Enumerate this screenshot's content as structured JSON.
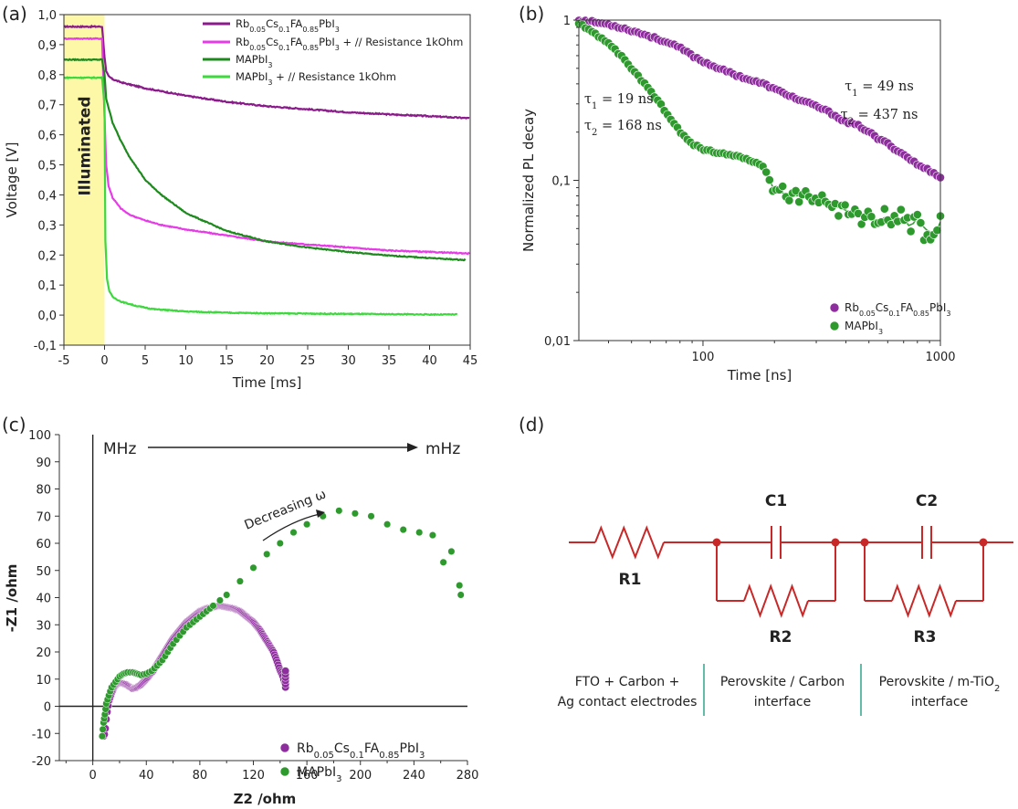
{
  "panel_labels": [
    "(a)",
    "(b)",
    "(c)",
    "(d)"
  ],
  "colors": {
    "rb": "#8B1A8B",
    "rb_res": "#E83BE8",
    "ma": "#1E8A1E",
    "ma_res": "#3CD83C",
    "highlight": "#FDF7A8",
    "circuit": "#C82828",
    "divider": "#2EA58A",
    "dot_purple": "#8E2E9E",
    "dot_green": "#2E9A2E"
  },
  "chart_data": [
    {
      "panel": "(a)",
      "type": "line",
      "xlabel": "Time [ms]",
      "ylabel": "Voltage [V]",
      "xlim": [
        -5,
        45
      ],
      "ylim": [
        -0.1,
        1.0
      ],
      "xticks": [
        "-5",
        "0",
        "5",
        "10",
        "15",
        "20",
        "25",
        "30",
        "35",
        "40",
        "45"
      ],
      "yticks": [
        "-0,1",
        "0,0",
        "0,1",
        "0,2",
        "0,3",
        "0,4",
        "0,5",
        "0,6",
        "0,7",
        "0,8",
        "0,9",
        "1,0"
      ],
      "annotation": "Illuminated",
      "illuminated_range": [
        -5,
        0
      ],
      "legend_position": "top-right",
      "series": [
        {
          "name_parts": [
            [
              "Rb",
              ""
            ],
            [
              "0.05",
              "sub"
            ],
            [
              "Cs",
              ""
            ],
            [
              "0.1",
              "sub"
            ],
            [
              "FA",
              ""
            ],
            [
              "0.85",
              "sub"
            ],
            [
              "PbI",
              ""
            ],
            [
              "3",
              "sub"
            ]
          ],
          "color_key": "rb",
          "x": [
            -5,
            -0.3,
            0,
            0.2,
            0.5,
            1,
            2,
            3,
            5,
            7,
            10,
            15,
            20,
            25,
            30,
            35,
            40,
            45
          ],
          "y": [
            0.96,
            0.96,
            0.86,
            0.81,
            0.795,
            0.785,
            0.775,
            0.768,
            0.755,
            0.745,
            0.73,
            0.71,
            0.695,
            0.685,
            0.675,
            0.668,
            0.662,
            0.655
          ]
        },
        {
          "name_parts": [
            [
              "Rb",
              ""
            ],
            [
              "0.05",
              "sub"
            ],
            [
              "Cs",
              ""
            ],
            [
              "0.1",
              "sub"
            ],
            [
              "FA",
              ""
            ],
            [
              "0.85",
              "sub"
            ],
            [
              "PbI",
              ""
            ],
            [
              "3",
              "sub"
            ],
            [
              " + // Resistance 1kOhm",
              ""
            ]
          ],
          "color_key": "rb_res",
          "x": [
            -5,
            -0.3,
            0,
            0.2,
            0.5,
            1,
            2,
            3,
            5,
            7,
            10,
            15,
            20,
            25,
            30,
            35,
            40,
            45
          ],
          "y": [
            0.92,
            0.92,
            0.66,
            0.5,
            0.43,
            0.39,
            0.355,
            0.335,
            0.315,
            0.3,
            0.285,
            0.265,
            0.245,
            0.235,
            0.225,
            0.215,
            0.21,
            0.205
          ]
        },
        {
          "name_parts": [
            [
              "MAPbI",
              ""
            ],
            [
              "3",
              "sub"
            ]
          ],
          "color_key": "ma",
          "x": [
            -5,
            -0.3,
            0,
            0.2,
            0.5,
            1,
            2,
            3,
            5,
            7,
            10,
            15,
            20,
            25,
            30,
            35,
            40,
            44.5
          ],
          "y": [
            0.85,
            0.85,
            0.8,
            0.72,
            0.69,
            0.64,
            0.58,
            0.53,
            0.45,
            0.4,
            0.34,
            0.28,
            0.245,
            0.225,
            0.21,
            0.198,
            0.19,
            0.183
          ]
        },
        {
          "name_parts": [
            [
              "MAPbI",
              ""
            ],
            [
              "3",
              "sub"
            ],
            [
              " + // Resistance 1kOhm",
              ""
            ]
          ],
          "color_key": "ma_res",
          "x": [
            -5,
            -0.3,
            0,
            0.1,
            0.3,
            0.6,
            1,
            2,
            4,
            6,
            10,
            15,
            20,
            25,
            30,
            35,
            40,
            43.5
          ],
          "y": [
            0.79,
            0.79,
            0.7,
            0.25,
            0.12,
            0.08,
            0.06,
            0.045,
            0.03,
            0.02,
            0.012,
            0.008,
            0.006,
            0.005,
            0.004,
            0.003,
            0.002,
            0.002
          ]
        }
      ]
    },
    {
      "panel": "(b)",
      "type": "scatter",
      "xlabel": "Time [ns]",
      "ylabel": "Normalized PL decay",
      "xscale": "log",
      "yscale": "log",
      "xlim": [
        30,
        1000
      ],
      "ylim": [
        0.01,
        1
      ],
      "xticks": [
        "100",
        "1000"
      ],
      "yticks": [
        "0,01",
        "0,1",
        "1"
      ],
      "legend_position": "bottom-right",
      "annotations": [
        {
          "tau": "τ",
          "sub": "1",
          "rest": " = 49 ns",
          "color_key": "rb"
        },
        {
          "tau": "τ",
          "sub": "2",
          "rest": " = 437 ns",
          "color_key": "rb"
        },
        {
          "tau": "τ",
          "sub": "1",
          "rest": " = 19 ns",
          "color_key": "ma"
        },
        {
          "tau": "τ",
          "sub": "2",
          "rest": " = 168 ns",
          "color_key": "ma"
        }
      ],
      "series": [
        {
          "name_parts": [
            [
              "Rb",
              ""
            ],
            [
              "0.05",
              "sub"
            ],
            [
              "Cs",
              ""
            ],
            [
              "0.1",
              "sub"
            ],
            [
              "FA",
              ""
            ],
            [
              "0.85",
              "sub"
            ],
            [
              "PbI",
              ""
            ],
            [
              "3",
              "sub"
            ]
          ],
          "color_key": "dot_purple",
          "x": [
            30,
            35,
            40,
            45,
            50,
            60,
            70,
            80,
            90,
            100,
            120,
            140,
            160,
            180,
            200,
            250,
            300,
            350,
            400,
            450,
            500,
            550,
            600,
            650,
            700,
            750,
            800,
            850,
            900,
            950,
            1000
          ],
          "y": [
            1.0,
            0.97,
            0.94,
            0.9,
            0.86,
            0.79,
            0.73,
            0.67,
            0.6,
            0.55,
            0.49,
            0.45,
            0.42,
            0.4,
            0.37,
            0.32,
            0.29,
            0.26,
            0.23,
            0.22,
            0.2,
            0.18,
            0.17,
            0.155,
            0.145,
            0.135,
            0.125,
            0.12,
            0.115,
            0.11,
            0.105
          ]
        },
        {
          "name_parts": [
            [
              "MAPbI",
              ""
            ],
            [
              "3",
              "sub"
            ]
          ],
          "color_key": "dot_green",
          "x": [
            30,
            35,
            40,
            45,
            50,
            55,
            60,
            70,
            80,
            90,
            100,
            120,
            140,
            160,
            180,
            200,
            250,
            300,
            350,
            400,
            450,
            500,
            550,
            600,
            650,
            700,
            750,
            800,
            850,
            900,
            950,
            1000
          ],
          "y": [
            0.95,
            0.82,
            0.72,
            0.6,
            0.5,
            0.42,
            0.36,
            0.26,
            0.2,
            0.17,
            0.155,
            0.148,
            0.142,
            0.132,
            0.12,
            0.085,
            0.08,
            0.08,
            0.07,
            0.065,
            0.06,
            0.058,
            0.056,
            0.06,
            0.055,
            0.058,
            0.05,
            0.06,
            0.05,
            0.048,
            0.046,
            0.055
          ]
        }
      ]
    },
    {
      "panel": "(c)",
      "type": "scatter",
      "xlabel": "Z2 /ohm",
      "ylabel": "-Z1 /ohm",
      "xlim": [
        -25,
        280
      ],
      "ylim": [
        -20,
        100
      ],
      "xticks": [
        "0",
        "40",
        "80",
        "120",
        "160",
        "200",
        "240",
        "280"
      ],
      "yticks": [
        "-20",
        "-10",
        "0",
        "10",
        "20",
        "30",
        "40",
        "50",
        "60",
        "70",
        "80",
        "90",
        "100"
      ],
      "annotations": {
        "left": "MHz",
        "right": "mHz",
        "arrow_label": "Decreasing ω"
      },
      "legend_position": "bottom-right",
      "series": [
        {
          "name_parts": [
            [
              "Rb",
              ""
            ],
            [
              "0.05",
              "sub"
            ],
            [
              "Cs",
              ""
            ],
            [
              "0.1",
              "sub"
            ],
            [
              "FA",
              ""
            ],
            [
              "0.85",
              "sub"
            ],
            [
              "PbI",
              ""
            ],
            [
              "3",
              "sub"
            ]
          ],
          "color_key": "dot_purple",
          "x": [
            8,
            9,
            10,
            11,
            12,
            14,
            16,
            18,
            20,
            22,
            25,
            28,
            30,
            33,
            36,
            40,
            45,
            50,
            55,
            60,
            65,
            70,
            75,
            80,
            85,
            90,
            95,
            100,
            105,
            110,
            115,
            120,
            125,
            130,
            135,
            138,
            140,
            142,
            143,
            144,
            144
          ],
          "y": [
            -11,
            -10,
            -5,
            -1,
            2,
            5,
            7,
            8,
            8.5,
            8.5,
            8,
            7,
            6.5,
            7,
            8,
            10,
            13,
            17,
            21,
            25,
            28,
            31,
            33,
            35,
            36,
            36.5,
            37,
            36.5,
            36,
            35,
            33,
            31,
            28,
            24,
            20,
            16,
            13,
            11,
            9,
            8,
            7
          ]
        },
        {
          "name_parts": [
            [
              "MAPbI",
              ""
            ],
            [
              "3",
              "sub"
            ]
          ],
          "color_key": "dot_green",
          "x": [
            7,
            8,
            9,
            10,
            12,
            14,
            17,
            20,
            23,
            26,
            30,
            33,
            36,
            40,
            44,
            48,
            52,
            56,
            60,
            65,
            70,
            75,
            80,
            85,
            90,
            100,
            110,
            120,
            130,
            140,
            150,
            160,
            172,
            184,
            196,
            208,
            220,
            232,
            244,
            254,
            262,
            268,
            274,
            275
          ],
          "y": [
            -11,
            -6,
            -3,
            1,
            4,
            7,
            9,
            11,
            12,
            12.5,
            12.5,
            12,
            11.5,
            12,
            13,
            15,
            17,
            20,
            23,
            26,
            29,
            31,
            33,
            35,
            37,
            41,
            46,
            51,
            56,
            60,
            64,
            67,
            70,
            72,
            71,
            70,
            67,
            65,
            64,
            63,
            53,
            57,
            44.5,
            41
          ]
        }
      ]
    }
  ],
  "circuit": {
    "labels": {
      "r1": "R1",
      "c1": "C1",
      "c2": "C2",
      "r2": "R2",
      "r3": "R3"
    },
    "captions": [
      {
        "lines": [
          "FTO + Carbon +",
          "Ag contact electrodes"
        ]
      },
      {
        "lines": [
          "Perovskite / Carbon",
          "interface"
        ]
      },
      {
        "line1_main": "Perovskite / m-TiO",
        "line1_sub": "2",
        "line2": "interface"
      }
    ]
  }
}
